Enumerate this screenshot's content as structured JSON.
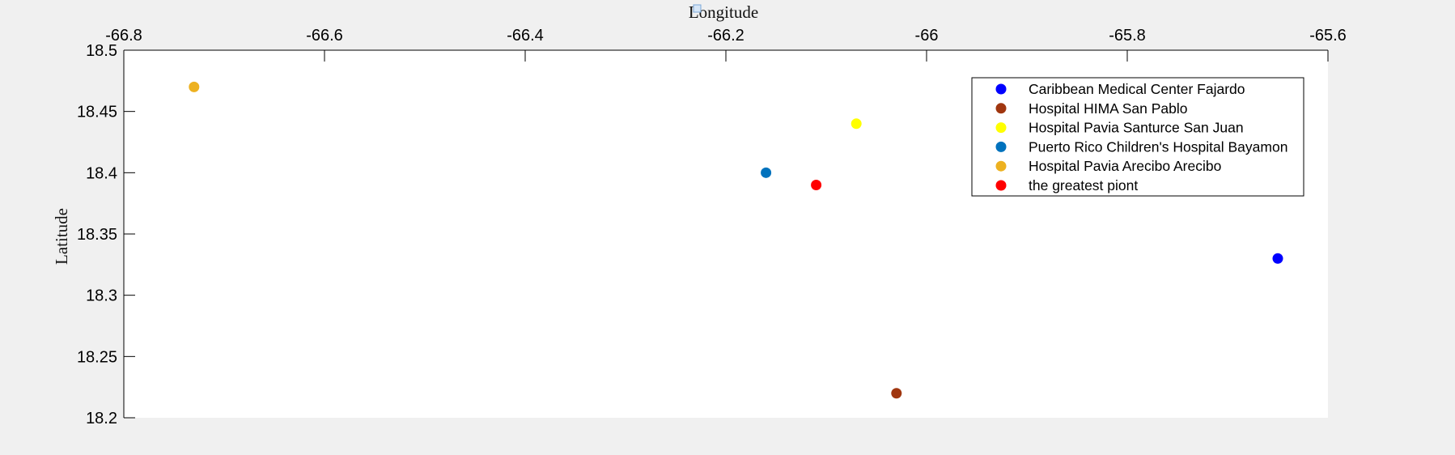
{
  "chart_data": {
    "type": "scatter",
    "title": "",
    "xlabel": "Longitude",
    "ylabel": "Latitude",
    "xlim": [
      -66.8,
      -65.6
    ],
    "ylim": [
      18.2,
      18.5
    ],
    "x_axis_location": "top",
    "x_ticks": [
      -66.8,
      -66.6,
      -66.4,
      -66.2,
      -66,
      -65.8,
      -65.6
    ],
    "x_tick_labels": [
      "-66.8",
      "-66.6",
      "-66.4",
      "-66.2",
      "-66",
      "-65.8",
      "-65.6"
    ],
    "y_ticks": [
      18.2,
      18.25,
      18.3,
      18.35,
      18.4,
      18.45,
      18.5
    ],
    "y_tick_labels": [
      "18.2",
      "18.25",
      "18.3",
      "18.35",
      "18.4",
      "18.45",
      "18.5"
    ],
    "grid": false,
    "legend_position": "top-right",
    "series": [
      {
        "name": "Caribbean Medical Center  Fajardo",
        "color": "#0000ff",
        "x": [
          -65.65
        ],
        "y": [
          18.33
        ]
      },
      {
        "name": "Hospital HIMA  San Pablo",
        "color": "#a0360f",
        "x": [
          -66.03
        ],
        "y": [
          18.22
        ]
      },
      {
        "name": "Hospital Pavia Santurce  San Juan",
        "color": "#ffff00",
        "x": [
          -66.07
        ],
        "y": [
          18.44
        ]
      },
      {
        "name": "Puerto Rico Children's Hospital  Bayamon",
        "color": "#0072bd",
        "x": [
          -66.16
        ],
        "y": [
          18.4
        ]
      },
      {
        "name": "Hospital Pavia Arecibo  Arecibo",
        "color": "#edb120",
        "x": [
          -66.73
        ],
        "y": [
          18.47
        ]
      },
      {
        "name": "the greatest piont",
        "color": "#ff0000",
        "x": [
          -66.11
        ],
        "y": [
          18.39
        ]
      }
    ]
  }
}
